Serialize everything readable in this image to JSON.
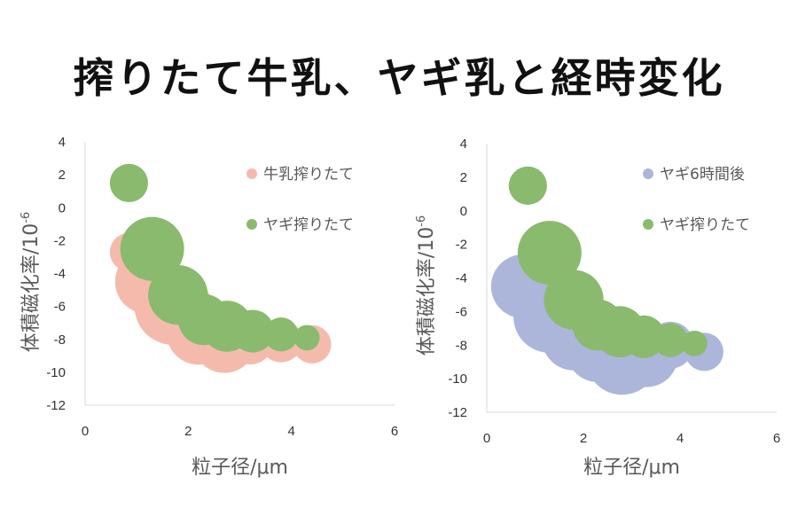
{
  "title": "搾りたて牛乳、ヤギ乳と経時変化",
  "colors": {
    "milk": "#f4bbad",
    "goat_fresh": "#8aba6d",
    "goat_6h": "#acb6db"
  },
  "chart_data": [
    {
      "type": "scatter",
      "subtype": "bubble",
      "xlabel": "粒子径/μm",
      "ylabel": "体積磁化率/10",
      "ylabel_sup": "-6",
      "xlim": [
        0,
        6
      ],
      "ylim": [
        -12,
        4
      ],
      "xticks": [
        0,
        2,
        4,
        6
      ],
      "yticks": [
        4,
        2,
        0,
        -2,
        -4,
        -6,
        -8,
        -10,
        -12
      ],
      "grid": false,
      "legend": "top-right",
      "series": [
        {
          "name": "牛乳搾りたて",
          "color": "#f4bbad",
          "points": [
            {
              "x": 0.85,
              "y": -2.7,
              "size": 0.45
            },
            {
              "x": 1.2,
              "y": -4.5,
              "size": 0.75
            },
            {
              "x": 1.7,
              "y": -6.0,
              "size": 0.9
            },
            {
              "x": 2.2,
              "y": -7.6,
              "size": 0.75
            },
            {
              "x": 2.7,
              "y": -8.1,
              "size": 0.75
            },
            {
              "x": 3.2,
              "y": -8.1,
              "size": 0.55
            },
            {
              "x": 3.8,
              "y": -8.1,
              "size": 0.5
            },
            {
              "x": 4.4,
              "y": -8.3,
              "size": 0.45
            }
          ]
        },
        {
          "name": "ヤギ搾りたて",
          "color": "#8aba6d",
          "points": [
            {
              "x": 0.85,
              "y": 1.5,
              "size": 0.45
            },
            {
              "x": 1.3,
              "y": -2.5,
              "size": 0.75
            },
            {
              "x": 1.8,
              "y": -5.3,
              "size": 0.7
            },
            {
              "x": 2.3,
              "y": -6.8,
              "size": 0.6
            },
            {
              "x": 2.75,
              "y": -7.2,
              "size": 0.6
            },
            {
              "x": 3.25,
              "y": -7.5,
              "size": 0.5
            },
            {
              "x": 3.8,
              "y": -7.7,
              "size": 0.4
            },
            {
              "x": 4.3,
              "y": -7.9,
              "size": 0.3
            }
          ]
        }
      ]
    },
    {
      "type": "scatter",
      "subtype": "bubble",
      "xlabel": "粒子径/μm",
      "ylabel": "体積磁化率/10",
      "ylabel_sup": "-6",
      "xlim": [
        0,
        6
      ],
      "ylim": [
        -12,
        4
      ],
      "xticks": [
        0,
        2,
        4,
        6
      ],
      "yticks": [
        4,
        2,
        0,
        -2,
        -4,
        -6,
        -8,
        -10,
        -12
      ],
      "grid": false,
      "legend": "top-right",
      "series": [
        {
          "name": "ヤギ6時間後",
          "color": "#acb6db",
          "points": [
            {
              "x": 0.75,
              "y": -4.5,
              "size": 0.75
            },
            {
              "x": 1.3,
              "y": -6.3,
              "size": 0.85
            },
            {
              "x": 1.8,
              "y": -7.6,
              "size": 0.75
            },
            {
              "x": 2.3,
              "y": -8.3,
              "size": 0.75
            },
            {
              "x": 2.8,
              "y": -8.8,
              "size": 0.85
            },
            {
              "x": 3.3,
              "y": -8.6,
              "size": 0.75
            },
            {
              "x": 3.8,
              "y": -8.0,
              "size": 0.55
            },
            {
              "x": 4.5,
              "y": -8.4,
              "size": 0.45
            }
          ]
        },
        {
          "name": "ヤギ搾りたて",
          "color": "#8aba6d",
          "points": [
            {
              "x": 0.85,
              "y": 1.5,
              "size": 0.45
            },
            {
              "x": 1.3,
              "y": -2.5,
              "size": 0.75
            },
            {
              "x": 1.8,
              "y": -5.3,
              "size": 0.7
            },
            {
              "x": 2.3,
              "y": -6.8,
              "size": 0.6
            },
            {
              "x": 2.75,
              "y": -7.2,
              "size": 0.6
            },
            {
              "x": 3.25,
              "y": -7.5,
              "size": 0.5
            },
            {
              "x": 3.8,
              "y": -7.7,
              "size": 0.4
            },
            {
              "x": 4.3,
              "y": -7.9,
              "size": 0.3
            }
          ]
        }
      ]
    }
  ]
}
